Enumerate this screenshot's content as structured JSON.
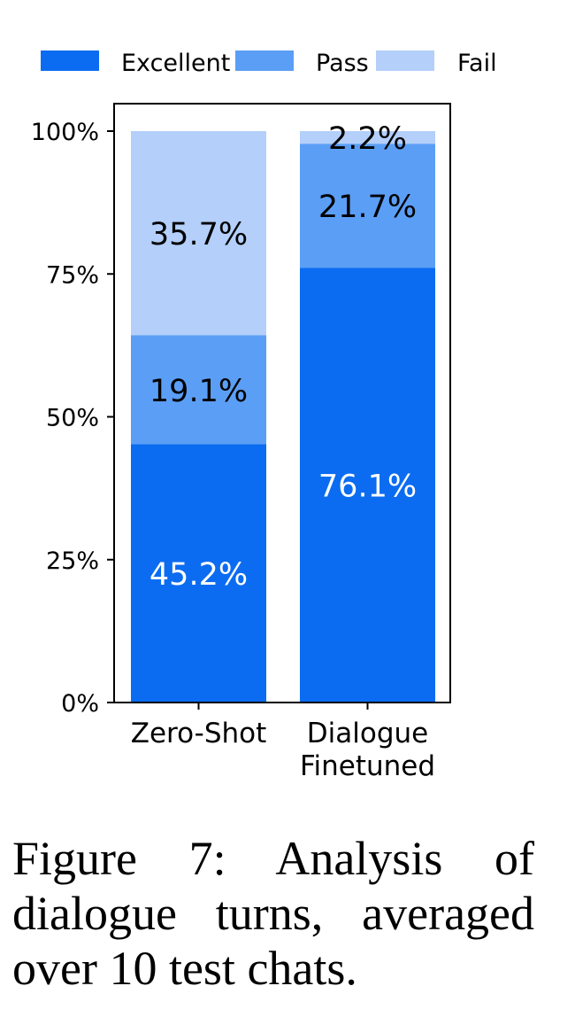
{
  "chart_data": {
    "type": "bar",
    "stacked": true,
    "categories": [
      [
        "Zero-Shot"
      ],
      [
        "Dialogue",
        "Finetuned"
      ]
    ],
    "series": [
      {
        "name": "Excellent",
        "values": [
          45.2,
          76.1
        ],
        "color": "#0b6cf1",
        "label_color": "#ffffff"
      },
      {
        "name": "Pass",
        "values": [
          19.1,
          21.7
        ],
        "color": "#5b9ef5",
        "label_color": "#000000"
      },
      {
        "name": "Fail",
        "values": [
          35.7,
          2.2
        ],
        "color": "#b3cffa",
        "label_color": "#000000"
      }
    ],
    "data_labels": [
      [
        "45.2%",
        "76.1%"
      ],
      [
        "19.1%",
        "21.7%"
      ],
      [
        "35.7%",
        "2.2%"
      ]
    ],
    "yticks": [
      "0%",
      "25%",
      "50%",
      "75%",
      "100%"
    ],
    "ylim": [
      0,
      100
    ],
    "legend_position": "top",
    "grid": false
  },
  "caption": "Figure 7: Analysis of dialogue turns, averaged over 10 test chats."
}
